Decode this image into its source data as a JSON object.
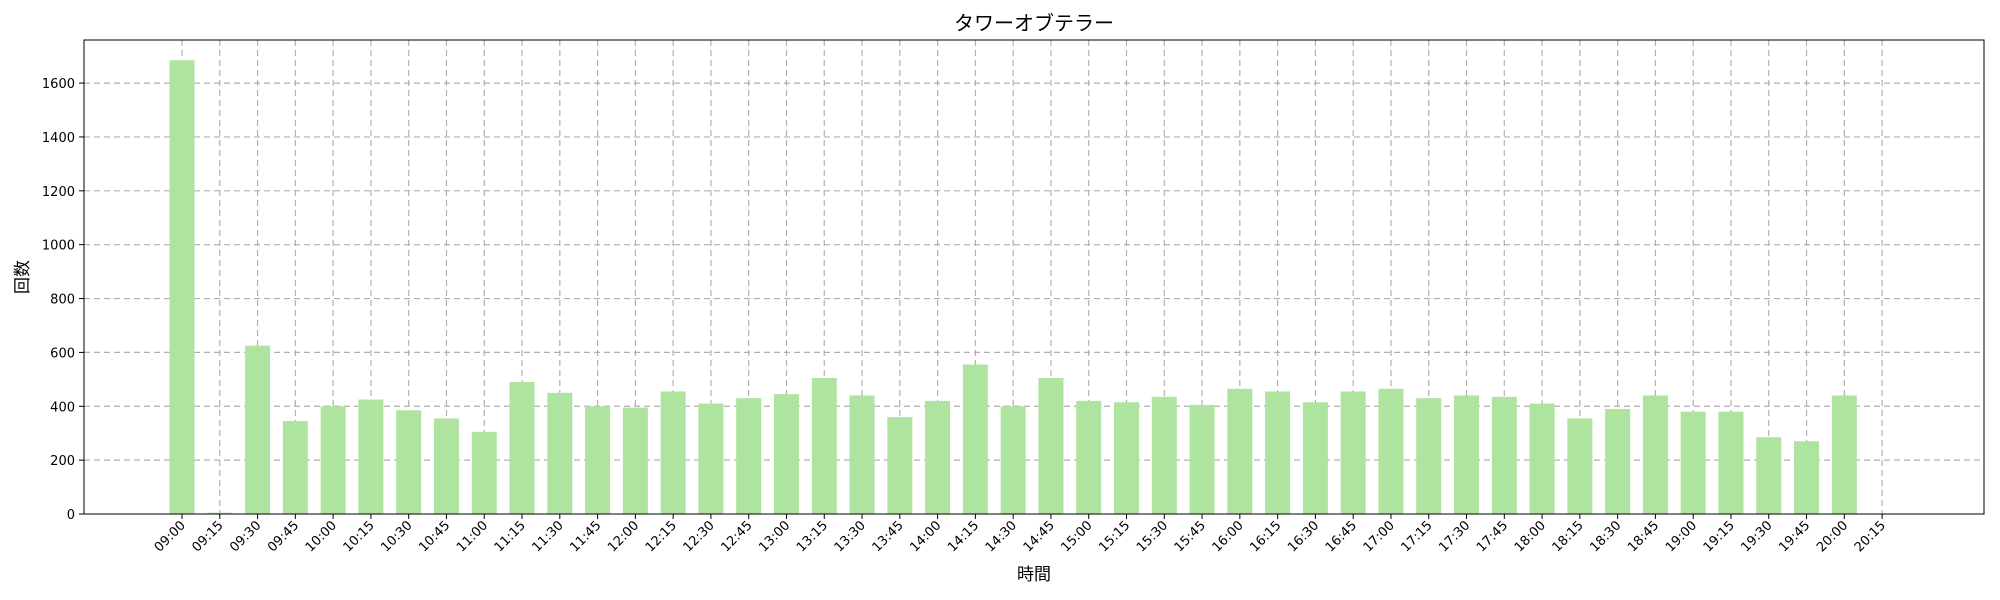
{
  "chart_data": {
    "type": "bar",
    "title": "タワーオブテラー",
    "xlabel": "時間",
    "ylabel": "回数",
    "categories": [
      "09:00",
      "09:15",
      "09:30",
      "09:45",
      "10:00",
      "10:15",
      "10:30",
      "10:45",
      "11:00",
      "11:15",
      "11:30",
      "11:45",
      "12:00",
      "12:15",
      "12:30",
      "12:45",
      "13:00",
      "13:15",
      "13:30",
      "13:45",
      "14:00",
      "14:15",
      "14:30",
      "14:45",
      "15:00",
      "15:15",
      "15:30",
      "15:45",
      "16:00",
      "16:15",
      "16:30",
      "16:45",
      "17:00",
      "17:15",
      "17:30",
      "17:45",
      "18:00",
      "18:15",
      "18:30",
      "18:45",
      "19:00",
      "19:15",
      "19:30",
      "19:45",
      "20:00",
      "20:15"
    ],
    "values": [
      1685,
      5,
      625,
      345,
      400,
      425,
      385,
      355,
      305,
      490,
      450,
      400,
      395,
      455,
      410,
      430,
      445,
      505,
      440,
      360,
      420,
      555,
      400,
      505,
      420,
      415,
      435,
      405,
      465,
      455,
      415,
      455,
      465,
      430,
      440,
      435,
      410,
      355,
      390,
      440,
      380,
      380,
      285,
      270,
      440,
      0
    ],
    "ylim": [
      0,
      1760
    ],
    "yticks": [
      0,
      200,
      400,
      600,
      800,
      1000,
      1200,
      1400,
      1600
    ],
    "grid": true,
    "bar_color": "#aee3a0"
  }
}
